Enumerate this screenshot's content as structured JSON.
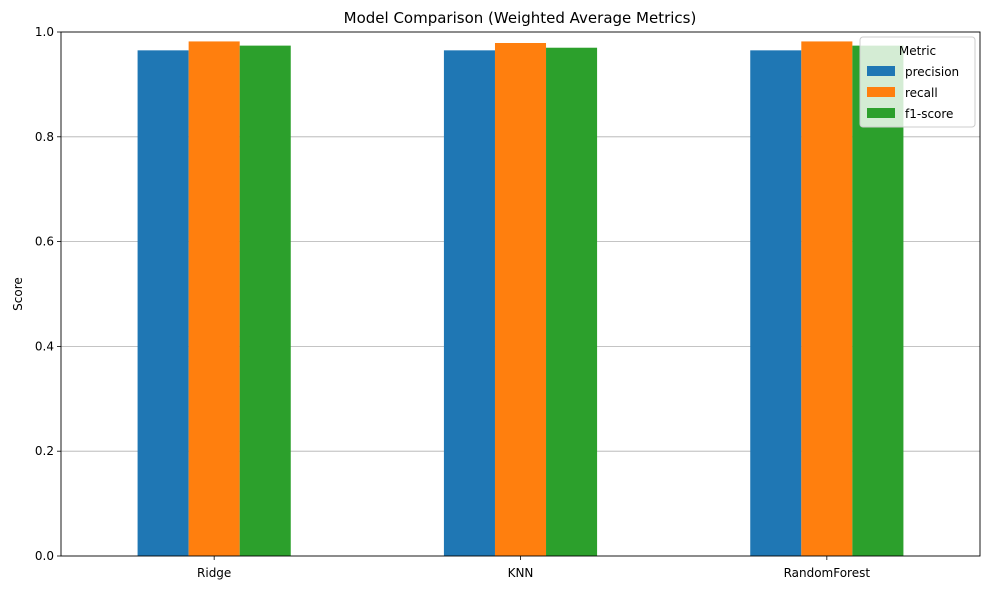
{
  "chart_data": {
    "type": "bar",
    "title": "Model Comparison (Weighted Average Metrics)",
    "xlabel": "",
    "ylabel": "Score",
    "ylim": [
      0,
      1.0
    ],
    "yticks": [
      "0.0",
      "0.2",
      "0.4",
      "0.6",
      "0.8",
      "1.0"
    ],
    "categories": [
      "Ridge",
      "KNN",
      "RandomForest"
    ],
    "series": [
      {
        "name": "precision",
        "color": "#1f77b4",
        "values": [
          0.965,
          0.965,
          0.965
        ]
      },
      {
        "name": "recall",
        "color": "#ff7f0e",
        "values": [
          0.982,
          0.979,
          0.982
        ]
      },
      {
        "name": "f1-score",
        "color": "#2ca02c",
        "values": [
          0.974,
          0.97,
          0.974
        ]
      }
    ],
    "legend": {
      "title": "Metric",
      "position": "top-right"
    },
    "grid": "y-major"
  }
}
